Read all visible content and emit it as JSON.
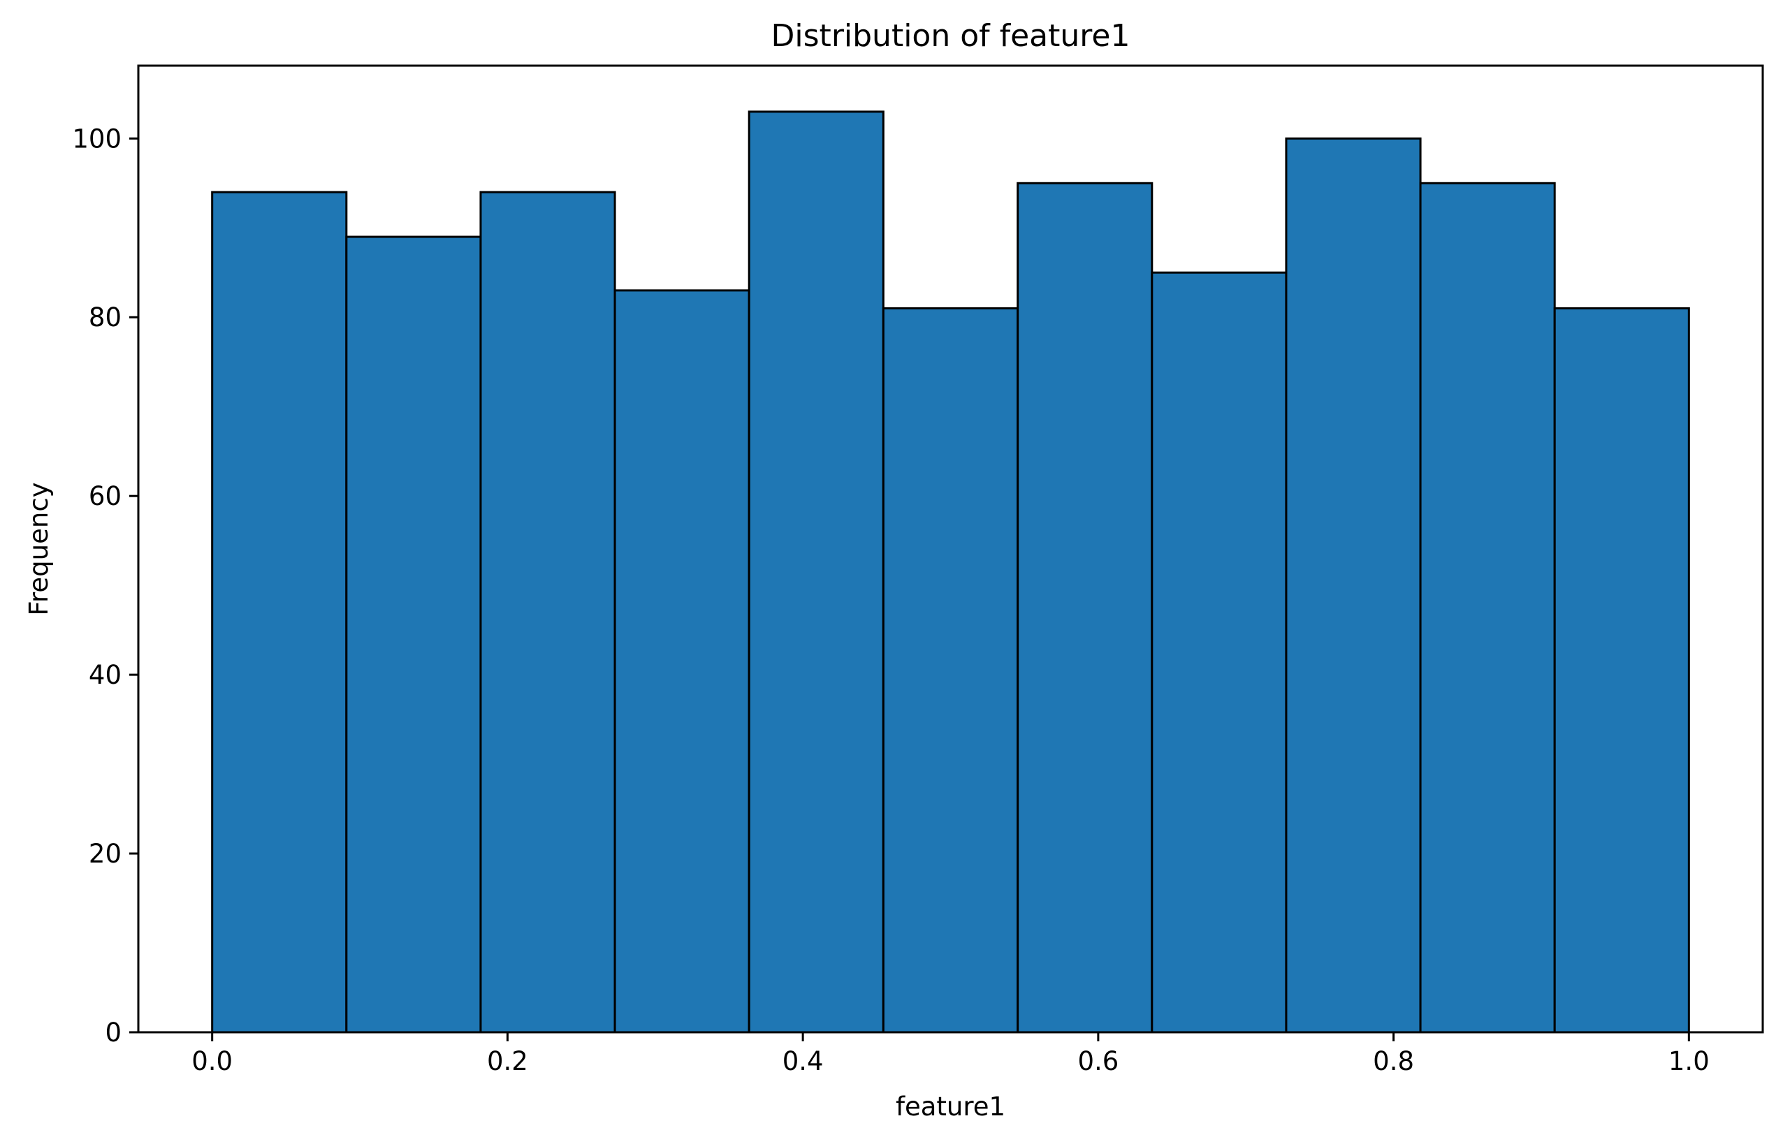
{
  "chart_data": {
    "type": "bar",
    "title": "Distribution of feature1",
    "xlabel": "feature1",
    "ylabel": "Frequency",
    "bin_edges": [
      0.0,
      0.0909,
      0.1818,
      0.2727,
      0.3636,
      0.4545,
      0.5455,
      0.6364,
      0.7273,
      0.8182,
      0.9091,
      1.0
    ],
    "values": [
      94,
      89,
      94,
      83,
      103,
      81,
      95,
      85,
      100,
      95,
      81
    ],
    "xlim": [
      -0.05,
      1.05
    ],
    "ylim": [
      0,
      108.15
    ],
    "xticks": [
      0.0,
      0.2,
      0.4,
      0.6,
      0.8,
      1.0
    ],
    "xtick_labels": [
      "0.0",
      "0.2",
      "0.4",
      "0.6",
      "0.8",
      "1.0"
    ],
    "yticks": [
      0,
      20,
      40,
      60,
      80,
      100
    ],
    "ytick_labels": [
      "0",
      "20",
      "40",
      "60",
      "80",
      "100"
    ],
    "grid": false,
    "colors": {
      "bar_fill": "#1f77b4",
      "bar_edge": "#000000",
      "axes": "#000000"
    }
  }
}
